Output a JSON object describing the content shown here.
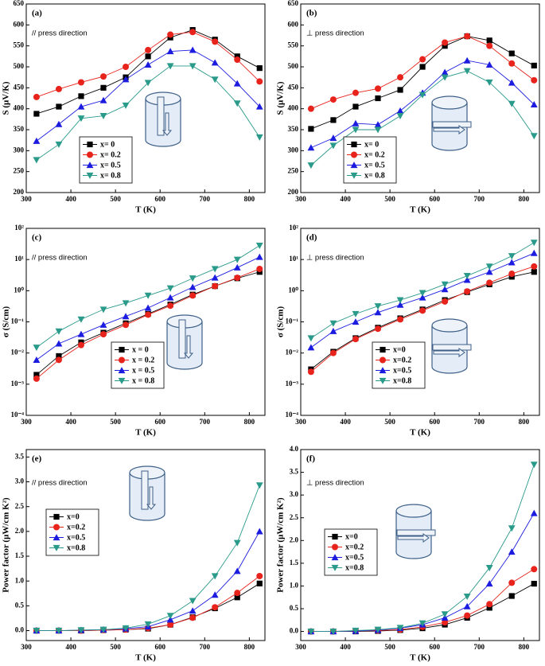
{
  "chart_data": [
    {
      "type": "line",
      "panel_label": "(a)",
      "annotation": "// press direction",
      "ylabel": "S (μV/K)",
      "xlabel": "T (K)",
      "x": [
        323,
        373,
        423,
        473,
        523,
        573,
        623,
        673,
        723,
        773,
        823
      ],
      "xlim": [
        300,
        835
      ],
      "xticks": [
        300,
        400,
        500,
        600,
        700,
        800
      ],
      "ylim": [
        200,
        650
      ],
      "yticks": [
        200,
        250,
        300,
        350,
        400,
        450,
        500,
        550,
        600,
        650
      ],
      "log_y": false,
      "series": [
        {
          "name": "x= 0",
          "color": "#000000",
          "marker": "square",
          "values": [
            388,
            405,
            430,
            450,
            475,
            525,
            570,
            588,
            565,
            525,
            497
          ]
        },
        {
          "name": "x= 0.2",
          "color": "#e8231c",
          "marker": "circle",
          "values": [
            428,
            447,
            463,
            477,
            500,
            540,
            577,
            583,
            560,
            517,
            465
          ]
        },
        {
          "name": "x= 0.5",
          "color": "#1c1ce0",
          "marker": "triangle-up",
          "values": [
            323,
            363,
            405,
            420,
            470,
            505,
            537,
            540,
            510,
            460,
            405
          ]
        },
        {
          "name": "x= 0.8",
          "color": "#2a9a8a",
          "marker": "triangle-down",
          "values": [
            278,
            315,
            377,
            383,
            408,
            462,
            502,
            502,
            470,
            413,
            332
          ]
        }
      ]
    },
    {
      "type": "line",
      "panel_label": "(b)",
      "annotation": "⊥ press direction",
      "ylabel": "S (μV/K)",
      "xlabel": "T (K)",
      "x": [
        323,
        373,
        423,
        473,
        523,
        573,
        623,
        673,
        723,
        773,
        823
      ],
      "xlim": [
        300,
        835
      ],
      "xticks": [
        300,
        400,
        500,
        600,
        700,
        800
      ],
      "ylim": [
        200,
        650
      ],
      "yticks": [
        200,
        250,
        300,
        350,
        400,
        450,
        500,
        550,
        600,
        650
      ],
      "log_y": false,
      "series": [
        {
          "name": "x= 0",
          "color": "#000000",
          "marker": "square",
          "values": [
            352,
            373,
            405,
            425,
            445,
            500,
            550,
            573,
            563,
            532,
            503
          ]
        },
        {
          "name": "x= 0.2",
          "color": "#e8231c",
          "marker": "circle",
          "values": [
            400,
            422,
            438,
            448,
            475,
            518,
            558,
            573,
            550,
            508,
            468
          ]
        },
        {
          "name": "x= 0.5",
          "color": "#1c1ce0",
          "marker": "triangle-up",
          "values": [
            307,
            330,
            365,
            362,
            395,
            438,
            487,
            515,
            505,
            462,
            410
          ]
        },
        {
          "name": "x= 0.8",
          "color": "#2a9a8a",
          "marker": "triangle-down",
          "values": [
            265,
            312,
            350,
            350,
            383,
            433,
            475,
            490,
            463,
            412,
            335
          ]
        }
      ]
    },
    {
      "type": "line",
      "panel_label": "(c)",
      "annotation": "// press direction",
      "ylabel": "σ (S/cm)",
      "xlabel": "T (K)",
      "x": [
        323,
        373,
        423,
        473,
        523,
        573,
        623,
        673,
        723,
        773,
        823
      ],
      "xlim": [
        300,
        835
      ],
      "xticks": [
        300,
        400,
        500,
        600,
        700,
        800
      ],
      "ylim": [
        0.0001,
        100
      ],
      "log_y": true,
      "yticks": [
        {
          "value": 0.0001,
          "label": "10⁻⁴"
        },
        {
          "value": 0.001,
          "label": "10⁻³"
        },
        {
          "value": 0.01,
          "label": "10⁻²"
        },
        {
          "value": 0.1,
          "label": "10⁻¹"
        },
        {
          "value": 1,
          "label": "10⁰"
        },
        {
          "value": 10,
          "label": "10¹"
        },
        {
          "value": 100,
          "label": "10²"
        }
      ],
      "series": [
        {
          "name": "x = 0",
          "color": "#000000",
          "marker": "square",
          "values": [
            0.002,
            0.008,
            0.022,
            0.045,
            0.09,
            0.18,
            0.36,
            0.75,
            1.4,
            2.5,
            4.0
          ]
        },
        {
          "name": "x = 0.2",
          "color": "#e8231c",
          "marker": "circle",
          "values": [
            0.0015,
            0.006,
            0.018,
            0.04,
            0.08,
            0.17,
            0.33,
            0.7,
            1.4,
            2.6,
            5.0
          ]
        },
        {
          "name": "x = 0.5",
          "color": "#1c1ce0",
          "marker": "triangle-up",
          "values": [
            0.006,
            0.02,
            0.04,
            0.08,
            0.15,
            0.28,
            0.6,
            1.3,
            2.6,
            5.5,
            12
          ]
        },
        {
          "name": "x = 0.8",
          "color": "#2a9a8a",
          "marker": "triangle-down",
          "values": [
            0.015,
            0.05,
            0.12,
            0.25,
            0.4,
            0.7,
            1.2,
            2.5,
            5,
            10,
            28
          ]
        }
      ]
    },
    {
      "type": "line",
      "panel_label": "(d)",
      "annotation": "⊥ press direction",
      "ylabel": "σ (S/cm)",
      "xlabel": "T (K)",
      "x": [
        323,
        373,
        423,
        473,
        523,
        573,
        623,
        673,
        723,
        773,
        823
      ],
      "xlim": [
        300,
        835
      ],
      "xticks": [
        300,
        400,
        500,
        600,
        700,
        800
      ],
      "ylim": [
        0.0001,
        100
      ],
      "log_y": true,
      "yticks": [
        {
          "value": 0.0001,
          "label": "10⁻⁴"
        },
        {
          "value": 0.001,
          "label": "10⁻³"
        },
        {
          "value": 0.01,
          "label": "10⁻²"
        },
        {
          "value": 0.1,
          "label": "10⁻¹"
        },
        {
          "value": 1,
          "label": "10⁰"
        },
        {
          "value": 10,
          "label": "10¹"
        },
        {
          "value": 100,
          "label": "10²"
        }
      ],
      "series": [
        {
          "name": "x=0",
          "color": "#000000",
          "marker": "square",
          "values": [
            0.003,
            0.011,
            0.03,
            0.065,
            0.13,
            0.25,
            0.5,
            0.9,
            1.6,
            2.8,
            4.0
          ]
        },
        {
          "name": "x=0.2",
          "color": "#e8231c",
          "marker": "circle",
          "values": [
            0.0025,
            0.01,
            0.028,
            0.06,
            0.12,
            0.23,
            0.45,
            0.95,
            1.8,
            3.5,
            6.0
          ]
        },
        {
          "name": "x=0.5",
          "color": "#1c1ce0",
          "marker": "triangle-up",
          "values": [
            0.015,
            0.05,
            0.1,
            0.2,
            0.35,
            0.6,
            1.1,
            2.2,
            4,
            8,
            16
          ]
        },
        {
          "name": "x=0.8",
          "color": "#2a9a8a",
          "marker": "triangle-down",
          "values": [
            0.03,
            0.09,
            0.18,
            0.32,
            0.5,
            0.85,
            1.6,
            3.0,
            6,
            13,
            35
          ]
        }
      ]
    },
    {
      "type": "line",
      "panel_label": "(e)",
      "annotation": "// press direction",
      "ylabel": "Power factor (μW/cm K²)",
      "xlabel": "T (K)",
      "x": [
        323,
        373,
        423,
        473,
        523,
        573,
        623,
        673,
        723,
        773,
        823
      ],
      "xlim": [
        300,
        835
      ],
      "xticks": [
        300,
        400,
        500,
        600,
        700,
        800
      ],
      "ylim": [
        -0.2,
        3.65
      ],
      "log_y": false,
      "yticks": [
        {
          "value": 0,
          "label": "0.0"
        },
        0.5,
        {
          "value": 1,
          "label": "1.0"
        },
        1.5,
        {
          "value": 2,
          "label": "2.0"
        },
        2.5,
        {
          "value": 3,
          "label": "3.0"
        },
        3.5
      ],
      "series": [
        {
          "name": "x=0",
          "color": "#000000",
          "marker": "square",
          "values": [
            0,
            0,
            0,
            0.01,
            0.02,
            0.04,
            0.12,
            0.27,
            0.45,
            0.67,
            0.95
          ]
        },
        {
          "name": "x=0.2",
          "color": "#e8231c",
          "marker": "circle",
          "values": [
            0,
            0,
            0,
            0.01,
            0.02,
            0.05,
            0.12,
            0.26,
            0.47,
            0.76,
            1.1
          ]
        },
        {
          "name": "x=0.5",
          "color": "#1c1ce0",
          "marker": "triangle-up",
          "values": [
            0,
            0,
            0.01,
            0.02,
            0.04,
            0.08,
            0.22,
            0.4,
            0.72,
            1.2,
            2.0
          ]
        },
        {
          "name": "x=0.8",
          "color": "#2a9a8a",
          "marker": "triangle-down",
          "values": [
            0,
            0,
            0.01,
            0.02,
            0.05,
            0.13,
            0.3,
            0.6,
            1.1,
            1.77,
            2.93
          ]
        }
      ]
    },
    {
      "type": "line",
      "panel_label": "(f)",
      "annotation": "⊥ press direction",
      "ylabel": "Power factor (μW/cm K²)",
      "xlabel": "T (K)",
      "x": [
        323,
        373,
        423,
        473,
        523,
        573,
        623,
        673,
        723,
        773,
        823
      ],
      "xlim": [
        300,
        835
      ],
      "xticks": [
        300,
        400,
        500,
        600,
        700,
        800
      ],
      "ylim": [
        -0.2,
        4.0
      ],
      "log_y": false,
      "yticks": [
        {
          "value": 0,
          "label": "0.0"
        },
        0.5,
        {
          "value": 1,
          "label": "1.0"
        },
        1.5,
        {
          "value": 2,
          "label": "2.0"
        },
        2.5,
        {
          "value": 3,
          "label": "3.0"
        },
        3.5,
        {
          "value": 4,
          "label": "4.0"
        }
      ],
      "series": [
        {
          "name": "x=0",
          "color": "#000000",
          "marker": "square",
          "values": [
            0,
            0,
            0,
            0.01,
            0.03,
            0.07,
            0.15,
            0.3,
            0.52,
            0.78,
            1.05
          ]
        },
        {
          "name": "x=0.2",
          "color": "#e8231c",
          "marker": "circle",
          "values": [
            0,
            0,
            0.01,
            0.02,
            0.04,
            0.1,
            0.2,
            0.35,
            0.6,
            1.07,
            1.37
          ]
        },
        {
          "name": "x=0.5",
          "color": "#1c1ce0",
          "marker": "triangle-up",
          "values": [
            0,
            0,
            0.01,
            0.03,
            0.07,
            0.15,
            0.3,
            0.55,
            1.05,
            1.75,
            2.6
          ]
        },
        {
          "name": "x=0.8",
          "color": "#2a9a8a",
          "marker": "triangle-down",
          "values": [
            0,
            0,
            0.02,
            0.04,
            0.08,
            0.18,
            0.38,
            0.77,
            1.4,
            2.27,
            3.67
          ]
        }
      ]
    }
  ]
}
